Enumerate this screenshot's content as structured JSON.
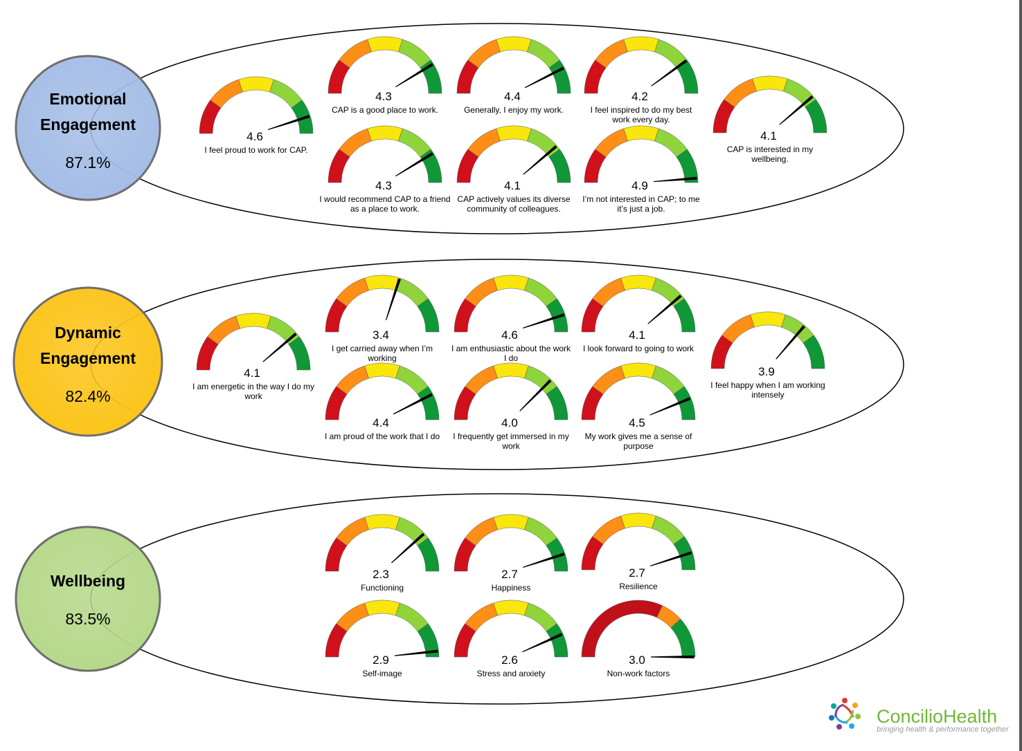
{
  "chart_data": [
    {
      "type": "gauge",
      "title": "Emotional Engagement",
      "overall": "87.1%",
      "scale": [
        1,
        5
      ],
      "items": [
        {
          "label": "I feel proud to work for CAP.",
          "value": 4.6
        },
        {
          "label": "CAP is a good place to work.",
          "value": 4.3
        },
        {
          "label": "Generally,  I enjoy my work.",
          "value": 4.4
        },
        {
          "label": "I feel inspired to do my best work every day.",
          "value": 4.2
        },
        {
          "label": "CAP is interested in my wellbeing.",
          "value": 4.1
        },
        {
          "label": "I would recommend CAP to a friend as a place to work.",
          "value": 4.3
        },
        {
          "label": "CAP actively values its diverse community of colleagues.",
          "value": 4.1
        },
        {
          "label": "I’m not interested in CAP; to me it’s just a job.",
          "value": 4.9
        }
      ]
    },
    {
      "type": "gauge",
      "title": "Dynamic Engagement",
      "overall": "82.4%",
      "scale": [
        1,
        5
      ],
      "items": [
        {
          "label": "I am energetic in the way I do my work",
          "value": 4.1
        },
        {
          "label": "I get carried away when I’m working",
          "value": 3.4
        },
        {
          "label": "I am enthusiastic about the work I do",
          "value": 4.6
        },
        {
          "label": "I look forward to going to work",
          "value": 4.1
        },
        {
          "label": "I feel happy when I am working intensely",
          "value": 3.9
        },
        {
          "label": "I am proud of the work that I do",
          "value": 4.4
        },
        {
          "label": "I frequently  get immersed in my work",
          "value": 4.0
        },
        {
          "label": "My work gives me a sense of purpose",
          "value": 4.5
        }
      ]
    },
    {
      "type": "gauge",
      "title": "Wellbeing",
      "overall": "83.5%",
      "scale": [
        0,
        3
      ],
      "items": [
        {
          "label": "Functioning",
          "value": 2.3
        },
        {
          "label": "Happiness",
          "value": 2.7
        },
        {
          "label": "Resilience",
          "value": 2.7
        },
        {
          "label": "Self-image",
          "value": 2.9
        },
        {
          "label": "Stress and anxiety",
          "value": 2.6
        },
        {
          "label": "Non-work factors",
          "value": 3.0
        }
      ]
    }
  ],
  "sections": {
    "emotional": {
      "title_lines": [
        "Emotional",
        "Engagement"
      ],
      "pct": "87.1%",
      "color": "#a4bde6"
    },
    "dynamic": {
      "title_lines": [
        "Dynamic",
        "Engagement"
      ],
      "pct": "82.4%",
      "color": "#fcc419"
    },
    "wellbeing": {
      "title_lines": [
        "Wellbeing"
      ],
      "pct": "83.5%",
      "color": "#b5d88a"
    }
  },
  "gauge_colors": {
    "standard": [
      "#d0111b",
      "#fd8e16",
      "#f9e60c",
      "#8fd43a",
      "#109838"
    ],
    "nonwork": [
      "#c0111b",
      "#fd8e16",
      "#109838"
    ],
    "needle": "#000000"
  },
  "brand": {
    "name_a": "Concilio",
    "name_b": "Health",
    "tagline": "bringing health & performance together"
  }
}
